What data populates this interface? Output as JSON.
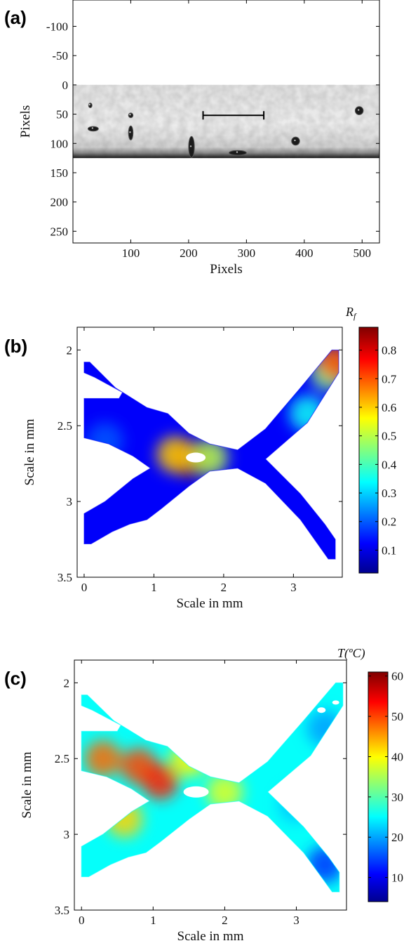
{
  "chart_data": [
    {
      "panel": "(a)",
      "type": "heatmap",
      "xlabel": "Pixels",
      "ylabel": "Pixels",
      "xticks": [
        100,
        200,
        300,
        400,
        500
      ],
      "yticks": [
        -100,
        -50,
        0,
        50,
        100,
        150,
        200,
        250
      ],
      "xlim": [
        0,
        530
      ],
      "ylim": [
        -145,
        270
      ],
      "y_reversed": true,
      "image_extent": {
        "x": [
          0,
          530
        ],
        "y": [
          0,
          125
        ]
      },
      "features": [
        {
          "x": 30,
          "y": 35,
          "rx": 3,
          "ry": 4
        },
        {
          "x": 35,
          "y": 75,
          "rx": 9,
          "ry": 4
        },
        {
          "x": 100,
          "y": 52,
          "rx": 4,
          "ry": 4
        },
        {
          "x": 100,
          "y": 82,
          "rx": 4,
          "ry": 12
        },
        {
          "x": 205,
          "y": 106,
          "rx": 5,
          "ry": 18
        },
        {
          "x": 285,
          "y": 116,
          "rx": 15,
          "ry": 4
        },
        {
          "x": 385,
          "y": 96,
          "rx": 7,
          "ry": 7
        },
        {
          "x": 495,
          "y": 44,
          "rx": 7,
          "ry": 7
        }
      ],
      "scale_bar": {
        "x0": 225,
        "x1": 330,
        "y": 52
      }
    },
    {
      "panel": "(b)",
      "type": "heatmap",
      "xlabel": "Scale in mm",
      "ylabel": "Scale in mm",
      "xticks": [
        0,
        1,
        2,
        3
      ],
      "yticks": [
        2,
        2.5,
        3,
        3.5
      ],
      "xlim": [
        -0.1,
        3.7
      ],
      "ylim": [
        1.85,
        3.5
      ],
      "y_reversed": true,
      "colorbar": {
        "label": "R_f",
        "ticks": [
          0.1,
          0.2,
          0.3,
          0.4,
          0.5,
          0.6,
          0.7,
          0.8
        ],
        "range": [
          0.02,
          0.88
        ],
        "colormap": "jet"
      },
      "hotspots": [
        {
          "x": 1.5,
          "y": 2.72,
          "value": 0.85
        },
        {
          "x": 1.3,
          "y": 2.69,
          "value": 0.6
        },
        {
          "x": 1.8,
          "y": 2.71,
          "value": 0.5
        },
        {
          "x": 3.5,
          "y": 2.15,
          "value": 0.45
        },
        {
          "x": 3.6,
          "y": 2.08,
          "value": 0.7
        },
        {
          "x": 3.2,
          "y": 2.42,
          "value": 0.35
        },
        {
          "x": 0.3,
          "y": 2.6,
          "value": 0.2
        }
      ]
    },
    {
      "panel": "(c)",
      "type": "heatmap",
      "xlabel": "Scale in mm",
      "ylabel": "Scale in mm",
      "xticks": [
        0,
        1,
        2,
        3
      ],
      "yticks": [
        2,
        2.5,
        3,
        3.5
      ],
      "xlim": [
        -0.1,
        3.7
      ],
      "ylim": [
        1.85,
        3.5
      ],
      "y_reversed": true,
      "colorbar": {
        "label": "T(ºC)",
        "ticks": [
          10,
          20,
          30,
          40,
          50,
          60
        ],
        "range": [
          4,
          61
        ],
        "colormap": "jet"
      },
      "hotspots": [
        {
          "x": 0.3,
          "y": 2.5,
          "value": 48
        },
        {
          "x": 0.8,
          "y": 2.55,
          "value": 50
        },
        {
          "x": 1.1,
          "y": 2.65,
          "value": 52
        },
        {
          "x": 0.6,
          "y": 2.9,
          "value": 42
        },
        {
          "x": 1.5,
          "y": 2.5,
          "value": 40
        },
        {
          "x": 2.0,
          "y": 2.72,
          "value": 38
        },
        {
          "x": 3.0,
          "y": 2.8,
          "value": 22
        },
        {
          "x": 3.4,
          "y": 3.2,
          "value": 14
        },
        {
          "x": 3.4,
          "y": 2.3,
          "value": 20
        }
      ]
    }
  ]
}
